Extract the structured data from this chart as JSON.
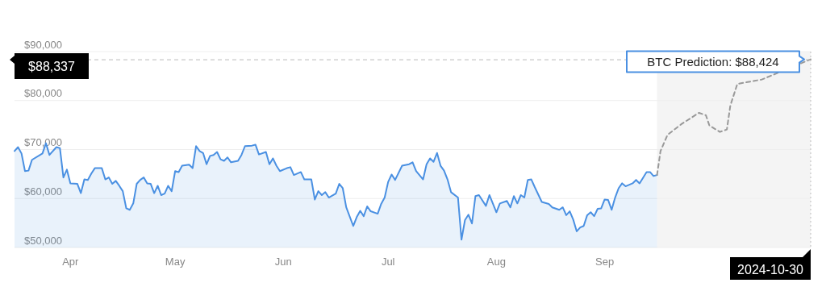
{
  "chart_data": {
    "type": "area",
    "xlim": [
      "2024-03-16",
      "2024-10-30"
    ],
    "xticks": [
      {
        "value": "2024-04-01",
        "label": "Apr"
      },
      {
        "value": "2024-05-01",
        "label": "May"
      },
      {
        "value": "2024-06-01",
        "label": "Jun"
      },
      {
        "value": "2024-07-01",
        "label": "Jul"
      },
      {
        "value": "2024-08-01",
        "label": "Aug"
      },
      {
        "value": "2024-09-01",
        "label": "Sep"
      }
    ],
    "ylim": [
      50000,
      90000
    ],
    "yticks": [
      {
        "value": 50000,
        "label": "$50,000"
      },
      {
        "value": 60000,
        "label": "$60,000"
      },
      {
        "value": 70000,
        "label": "$70,000"
      },
      {
        "value": 80000,
        "label": "$80,000"
      },
      {
        "value": 90000,
        "label": "$90,000"
      }
    ],
    "grid": "y",
    "marker": "none",
    "series": [
      {
        "color": "#4a90e2",
        "line_style": "solid",
        "x": [
          "2024-03-16",
          "2024-03-17",
          "2024-03-18",
          "2024-03-19",
          "2024-03-20",
          "2024-03-21",
          "2024-03-24",
          "2024-03-25",
          "2024-03-26",
          "2024-03-28",
          "2024-03-29",
          "2024-03-30",
          "2024-03-31",
          "2024-04-01",
          "2024-04-03",
          "2024-04-04",
          "2024-04-05",
          "2024-04-06",
          "2024-04-07",
          "2024-04-08",
          "2024-04-10",
          "2024-04-11",
          "2024-04-12",
          "2024-04-13",
          "2024-04-14",
          "2024-04-15",
          "2024-04-16",
          "2024-04-17",
          "2024-04-18",
          "2024-04-19",
          "2024-04-20",
          "2024-04-21",
          "2024-04-22",
          "2024-04-23",
          "2024-04-24",
          "2024-04-25",
          "2024-04-26",
          "2024-04-27",
          "2024-04-28",
          "2024-04-29",
          "2024-04-30",
          "2024-05-01",
          "2024-05-02",
          "2024-05-03",
          "2024-05-05",
          "2024-05-06",
          "2024-05-07",
          "2024-05-08",
          "2024-05-09",
          "2024-05-10",
          "2024-05-11",
          "2024-05-12",
          "2024-05-13",
          "2024-05-14",
          "2024-05-15",
          "2024-05-16",
          "2024-05-17",
          "2024-05-19",
          "2024-05-20",
          "2024-05-21",
          "2024-05-23",
          "2024-05-24",
          "2024-05-25",
          "2024-05-27",
          "2024-05-28",
          "2024-05-29",
          "2024-05-30",
          "2024-05-31",
          "2024-06-02",
          "2024-06-03",
          "2024-06-04",
          "2024-06-06",
          "2024-06-07",
          "2024-06-09",
          "2024-06-10",
          "2024-06-11",
          "2024-06-12",
          "2024-06-13",
          "2024-06-14",
          "2024-06-16",
          "2024-06-17",
          "2024-06-18",
          "2024-06-19",
          "2024-06-21",
          "2024-06-22",
          "2024-06-23",
          "2024-06-24",
          "2024-06-25",
          "2024-06-26",
          "2024-06-28",
          "2024-06-29",
          "2024-06-30",
          "2024-07-01",
          "2024-07-02",
          "2024-07-03",
          "2024-07-05",
          "2024-07-07",
          "2024-07-08",
          "2024-07-09",
          "2024-07-11",
          "2024-07-12",
          "2024-07-13",
          "2024-07-14",
          "2024-07-15",
          "2024-07-16",
          "2024-07-17",
          "2024-07-18",
          "2024-07-19",
          "2024-07-21",
          "2024-07-22",
          "2024-07-23",
          "2024-07-24",
          "2024-07-25",
          "2024-07-26",
          "2024-07-27",
          "2024-07-29",
          "2024-07-30",
          "2024-08-01",
          "2024-08-02",
          "2024-08-04",
          "2024-08-05",
          "2024-08-06",
          "2024-08-07",
          "2024-08-08",
          "2024-08-09",
          "2024-08-10",
          "2024-08-11",
          "2024-08-12",
          "2024-08-14",
          "2024-08-16",
          "2024-08-17",
          "2024-08-19",
          "2024-08-20",
          "2024-08-21",
          "2024-08-22",
          "2024-08-23",
          "2024-08-24",
          "2024-08-25",
          "2024-08-26",
          "2024-08-27",
          "2024-08-28",
          "2024-08-29",
          "2024-08-30",
          "2024-08-31",
          "2024-09-01",
          "2024-09-02",
          "2024-09-03",
          "2024-09-04",
          "2024-09-05",
          "2024-09-06",
          "2024-09-07",
          "2024-09-09",
          "2024-09-10",
          "2024-09-11",
          "2024-09-13",
          "2024-09-14",
          "2024-09-15",
          "2024-09-16"
        ],
        "values": [
          69700,
          70500,
          69200,
          65600,
          65700,
          67900,
          69200,
          71300,
          68900,
          70500,
          70300,
          64300,
          65900,
          63100,
          63000,
          61100,
          63900,
          63800,
          65100,
          66200,
          66200,
          63900,
          64300,
          63000,
          63600,
          62600,
          61500,
          58000,
          57700,
          59000,
          63000,
          63800,
          64300,
          63100,
          63000,
          61100,
          62600,
          60700,
          61000,
          62600,
          61500,
          65600,
          65400,
          66700,
          66900,
          66200,
          70700,
          69700,
          69300,
          67000,
          68700,
          68900,
          69500,
          68000,
          67700,
          68400,
          67400,
          67700,
          68900,
          70700,
          70800,
          71000,
          69000,
          69500,
          67000,
          68200,
          66700,
          65600,
          66200,
          66400,
          64800,
          65400,
          63900,
          63900,
          59800,
          61500,
          60700,
          61300,
          60200,
          61000,
          63000,
          62100,
          58200,
          54400,
          56200,
          57500,
          56400,
          58400,
          57400,
          56900,
          58900,
          60200,
          63400,
          64900,
          63800,
          66700,
          67000,
          67400,
          65600,
          63900,
          67000,
          68200,
          67500,
          69300,
          66700,
          65700,
          63900,
          61300,
          60200,
          51600,
          55600,
          56700,
          54900,
          60500,
          60700,
          58500,
          60700,
          57200,
          59000,
          59500,
          58200,
          60500,
          59000,
          60700,
          60200,
          63800,
          63900,
          62300,
          59300,
          58900,
          58200,
          57700,
          58200,
          56600,
          57400,
          55700,
          53300,
          54100,
          54400,
          56600,
          57200,
          56400,
          57900,
          58000,
          59800,
          59700,
          57700,
          60200,
          62100,
          63100,
          62500,
          63100,
          63800,
          63100,
          65400,
          65400,
          64600,
          64800
        ]
      },
      {
        "type": "line",
        "color": "#999999",
        "line_style": "dashed",
        "x": [
          "2024-09-16",
          "2024-09-17",
          "2024-09-19",
          "2024-09-23",
          "2024-09-28",
          "2024-09-30",
          "2024-10-01",
          "2024-10-04",
          "2024-10-06",
          "2024-10-07",
          "2024-10-09",
          "2024-10-16",
          "2024-10-30"
        ],
        "values": [
          64800,
          69700,
          73000,
          75200,
          77500,
          77000,
          74900,
          73600,
          74100,
          79000,
          83400,
          84300,
          88424
        ]
      }
    ],
    "bands": [
      {
        "axis": "x",
        "from": "2024-09-16",
        "to": "2024-10-30",
        "color": "#f4f4f4"
      }
    ],
    "ref_lines": [
      {
        "axis": "y",
        "value": 88337,
        "label": "$88,337",
        "color": "#bbbbbb",
        "line_style": "dashed"
      },
      {
        "axis": "x",
        "value": "2024-10-30",
        "label": "2024-10-30",
        "color": "#bbbbbb",
        "line_style": "dotted"
      }
    ],
    "annotations": [
      {
        "text": "BTC Prediction: $88,424",
        "x": "2024-10-30",
        "y": 88424
      }
    ]
  }
}
